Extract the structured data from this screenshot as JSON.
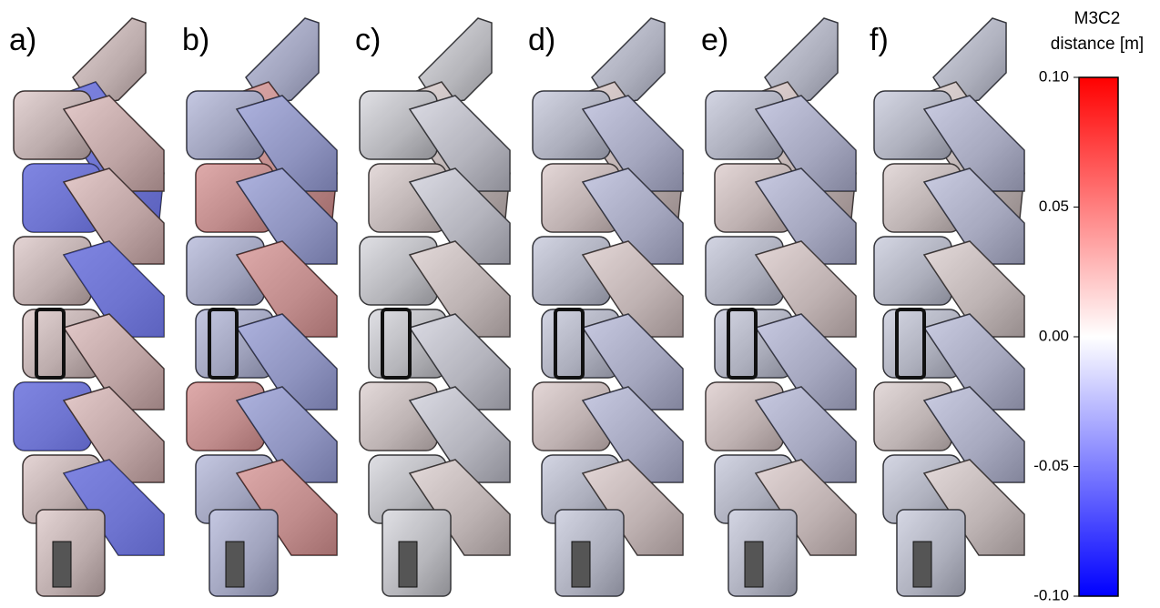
{
  "panels": [
    {
      "label": "a)"
    },
    {
      "label": "b)"
    },
    {
      "label": "c)"
    },
    {
      "label": "d)"
    },
    {
      "label": "e)"
    },
    {
      "label": "f)"
    }
  ],
  "colorbar": {
    "title": [
      "M3C2",
      "distance [m]"
    ],
    "lim": [
      -0.1,
      0.1
    ],
    "ticks": [
      {
        "value": 0.1,
        "label": "0.10"
      },
      {
        "value": 0.05,
        "label": "0.05"
      },
      {
        "value": 0,
        "label": "0.00"
      },
      {
        "value": -0.05,
        "label": "-0.05"
      },
      {
        "value": -0.1,
        "label": "-0.10"
      }
    ],
    "colors": [
      "#0000ff",
      "#ffffff",
      "#ff0000"
    ]
  }
}
